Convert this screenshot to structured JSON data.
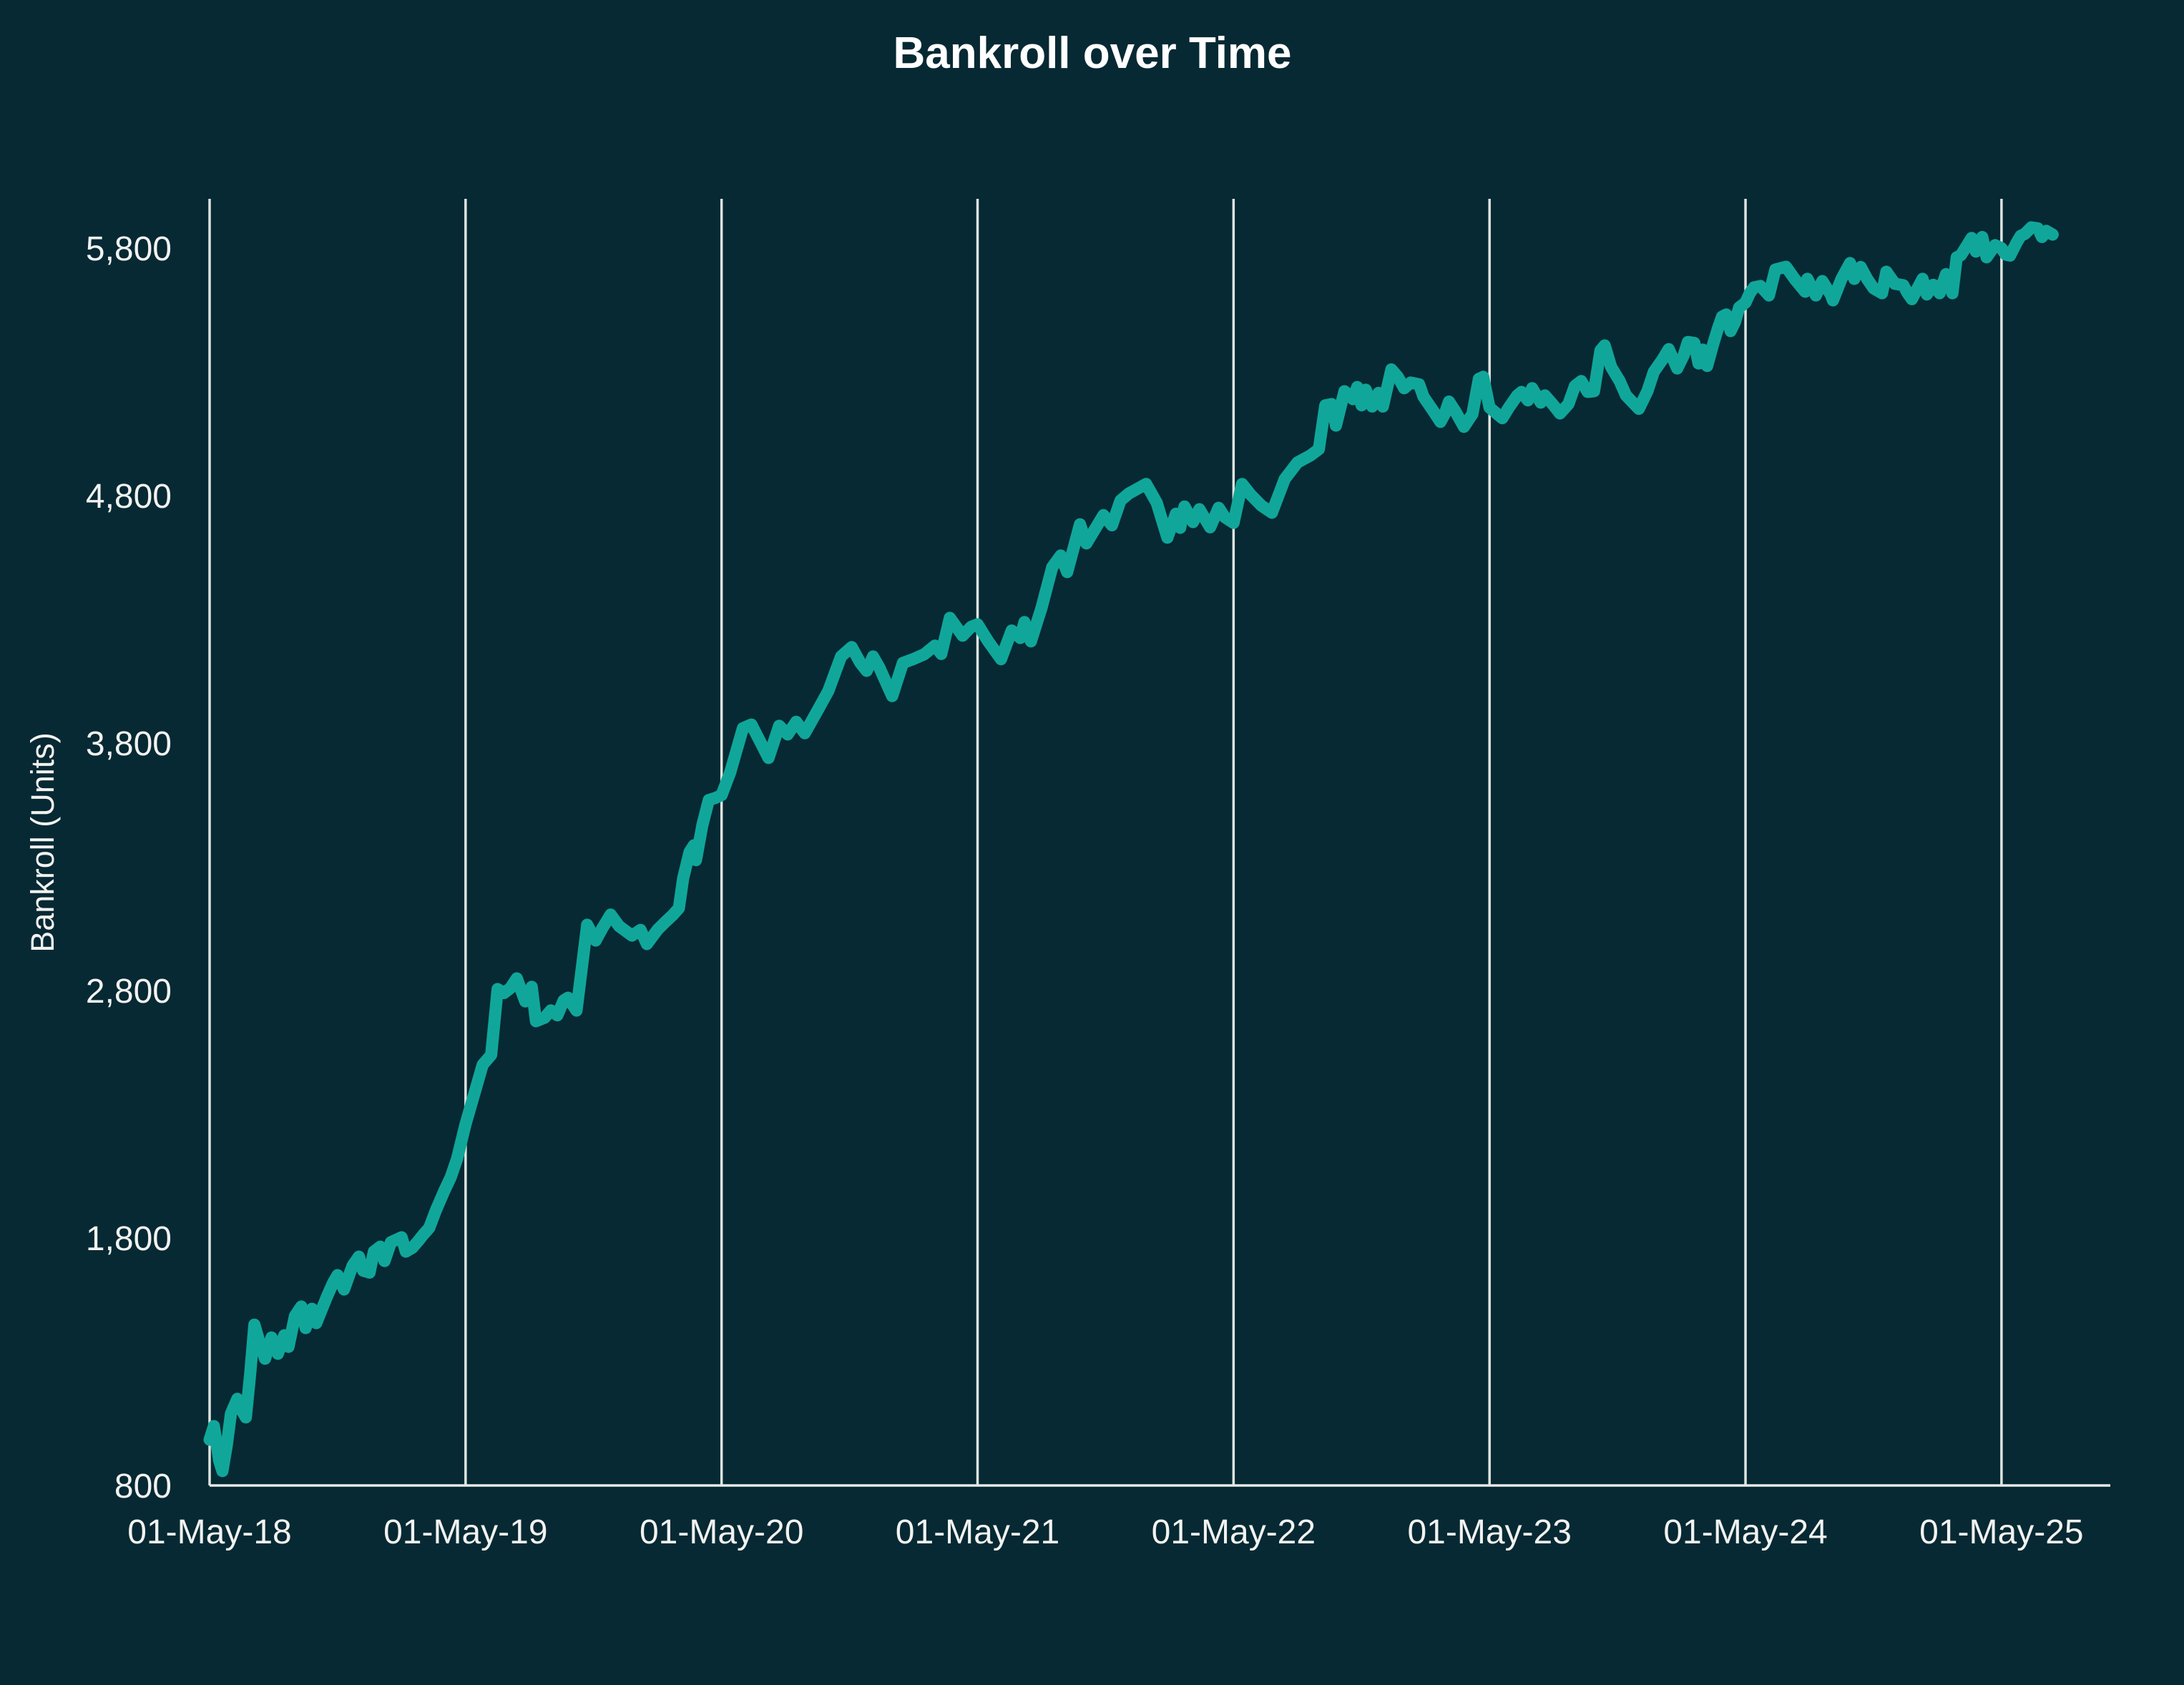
{
  "title": "Bankroll over Time",
  "colors": {
    "background": "#062933",
    "line": "#10a79a",
    "grid": "#dfe3e0",
    "axis_line": "#e8ebe8",
    "tick_text": "#f2f2f0",
    "title_text": "#ffffff"
  },
  "chart_data": {
    "type": "line",
    "title": "Bankroll over Time",
    "xlabel": "",
    "ylabel": "Bankroll (Units)",
    "legend": "none",
    "grid": "vertical-only",
    "ylim": [
      800,
      6000
    ],
    "xlim_months_from_first_tick": [
      0,
      89.1
    ],
    "y_ticks": [
      {
        "value": 800,
        "label": "800"
      },
      {
        "value": 1800,
        "label": "1,800"
      },
      {
        "value": 2800,
        "label": "2,800"
      },
      {
        "value": 3800,
        "label": "3,800"
      },
      {
        "value": 4800,
        "label": "4,800"
      },
      {
        "value": 5800,
        "label": "5,800"
      }
    ],
    "x_ticks": [
      {
        "month": 0,
        "label": "01-May-18"
      },
      {
        "month": 12,
        "label": "01-May-19"
      },
      {
        "month": 24,
        "label": "01-May-20"
      },
      {
        "month": 36,
        "label": "01-May-21"
      },
      {
        "month": 48,
        "label": "01-May-22"
      },
      {
        "month": 60,
        "label": "01-May-23"
      },
      {
        "month": 72,
        "label": "01-May-24"
      },
      {
        "month": 84,
        "label": "01-May-25"
      }
    ],
    "series": [
      {
        "name": "Bankroll",
        "color": "#10a79a",
        "points_month_value": [
          [
            0,
            985
          ],
          [
            0.2,
            1040
          ],
          [
            0.45,
            900
          ],
          [
            0.6,
            858
          ],
          [
            0.8,
            960
          ],
          [
            1,
            1090
          ],
          [
            1.3,
            1150
          ],
          [
            1.5,
            1105
          ],
          [
            1.7,
            1075
          ],
          [
            1.9,
            1250
          ],
          [
            2.1,
            1450
          ],
          [
            2.3,
            1390
          ],
          [
            2.6,
            1312
          ],
          [
            2.9,
            1398
          ],
          [
            3.2,
            1332
          ],
          [
            3.5,
            1407
          ],
          [
            3.7,
            1360
          ],
          [
            4,
            1485
          ],
          [
            4.3,
            1523
          ],
          [
            4.5,
            1436
          ],
          [
            4.8,
            1514
          ],
          [
            5,
            1456
          ],
          [
            5.5,
            1563
          ],
          [
            5.8,
            1621
          ],
          [
            6,
            1650
          ],
          [
            6.3,
            1592
          ],
          [
            6.7,
            1688
          ],
          [
            7,
            1725
          ],
          [
            7.2,
            1668
          ],
          [
            7.5,
            1660
          ],
          [
            7.7,
            1745
          ],
          [
            8,
            1765
          ],
          [
            8.2,
            1707
          ],
          [
            8.5,
            1783
          ],
          [
            9,
            1803
          ],
          [
            9.2,
            1745
          ],
          [
            9.5,
            1760
          ],
          [
            9.8,
            1790
          ],
          [
            10,
            1812
          ],
          [
            10.3,
            1841
          ],
          [
            10.6,
            1910
          ],
          [
            11,
            1990
          ],
          [
            11.3,
            2045
          ],
          [
            11.6,
            2120
          ],
          [
            12,
            2260
          ],
          [
            12.4,
            2380
          ],
          [
            12.8,
            2500
          ],
          [
            13.2,
            2540
          ],
          [
            13.5,
            2806
          ],
          [
            13.8,
            2790
          ],
          [
            14.1,
            2810
          ],
          [
            14.4,
            2849
          ],
          [
            14.8,
            2756
          ],
          [
            15.1,
            2815
          ],
          [
            15.3,
            2676
          ],
          [
            15.7,
            2690
          ],
          [
            16,
            2720
          ],
          [
            16.3,
            2700
          ],
          [
            16.6,
            2760
          ],
          [
            16.8,
            2771
          ],
          [
            17.2,
            2719
          ],
          [
            17.7,
            3066
          ],
          [
            18.1,
            3002
          ],
          [
            18.4,
            3050
          ],
          [
            18.8,
            3107
          ],
          [
            19.2,
            3060
          ],
          [
            19.8,
            3022
          ],
          [
            20.2,
            3045
          ],
          [
            20.5,
            2988
          ],
          [
            21,
            3046
          ],
          [
            21.4,
            3080
          ],
          [
            21.7,
            3104
          ],
          [
            22,
            3133
          ],
          [
            22.2,
            3254
          ],
          [
            22.5,
            3360
          ],
          [
            22.7,
            3387
          ],
          [
            22.8,
            3327
          ],
          [
            23.1,
            3468
          ],
          [
            23.4,
            3570
          ],
          [
            23.7,
            3578
          ],
          [
            24,
            3590
          ],
          [
            24.4,
            3680
          ],
          [
            25,
            3860
          ],
          [
            25.4,
            3875
          ],
          [
            26.2,
            3740
          ],
          [
            26.7,
            3870
          ],
          [
            27.1,
            3835
          ],
          [
            27.5,
            3886
          ],
          [
            27.9,
            3840
          ],
          [
            28.5,
            3932
          ],
          [
            29,
            4010
          ],
          [
            29.6,
            4150
          ],
          [
            30.1,
            4188
          ],
          [
            30.5,
            4125
          ],
          [
            30.8,
            4092
          ],
          [
            31.1,
            4150
          ],
          [
            31.4,
            4105
          ],
          [
            32,
            3990
          ],
          [
            32.5,
            4124
          ],
          [
            33,
            4140
          ],
          [
            33.5,
            4159
          ],
          [
            34,
            4194
          ],
          [
            34.3,
            4160
          ],
          [
            34.7,
            4306
          ],
          [
            35,
            4270
          ],
          [
            35.3,
            4234
          ],
          [
            35.7,
            4270
          ],
          [
            36,
            4280
          ],
          [
            36.5,
            4211
          ],
          [
            37.1,
            4139
          ],
          [
            37.6,
            4255
          ],
          [
            38,
            4225
          ],
          [
            38.2,
            4289
          ],
          [
            38.5,
            4211
          ],
          [
            39,
            4347
          ],
          [
            39.5,
            4511
          ],
          [
            39.9,
            4558
          ],
          [
            40.2,
            4491
          ],
          [
            40.8,
            4684
          ],
          [
            41.1,
            4607
          ],
          [
            41.9,
            4721
          ],
          [
            42.3,
            4680
          ],
          [
            42.7,
            4780
          ],
          [
            43.1,
            4809
          ],
          [
            43.9,
            4847
          ],
          [
            44.4,
            4771
          ],
          [
            44.9,
            4630
          ],
          [
            45.3,
            4727
          ],
          [
            45.5,
            4670
          ],
          [
            45.7,
            4756
          ],
          [
            46.1,
            4693
          ],
          [
            46.4,
            4745
          ],
          [
            46.9,
            4672
          ],
          [
            47.3,
            4751
          ],
          [
            47.6,
            4712
          ],
          [
            48,
            4690
          ],
          [
            48.4,
            4847
          ],
          [
            48.8,
            4804
          ],
          [
            49.3,
            4760
          ],
          [
            49.8,
            4731
          ],
          [
            50.4,
            4867
          ],
          [
            51,
            4934
          ],
          [
            51.6,
            4962
          ],
          [
            52,
            4988
          ],
          [
            52.3,
            5165
          ],
          [
            52.6,
            5170
          ],
          [
            52.8,
            5083
          ],
          [
            53.2,
            5222
          ],
          [
            53.6,
            5190
          ],
          [
            53.8,
            5239
          ],
          [
            54,
            5165
          ],
          [
            54.2,
            5228
          ],
          [
            54.5,
            5160
          ],
          [
            54.8,
            5215
          ],
          [
            55,
            5160
          ],
          [
            55.4,
            5310
          ],
          [
            55.7,
            5280
          ],
          [
            56,
            5234
          ],
          [
            56.3,
            5257
          ],
          [
            56.7,
            5250
          ],
          [
            56.9,
            5200
          ],
          [
            57.3,
            5150
          ],
          [
            57.7,
            5098
          ],
          [
            57.9,
            5130
          ],
          [
            58.1,
            5180
          ],
          [
            58.4,
            5140
          ],
          [
            58.8,
            5078
          ],
          [
            59.2,
            5130
          ],
          [
            59.5,
            5272
          ],
          [
            59.7,
            5280
          ],
          [
            60,
            5156
          ],
          [
            60.4,
            5127
          ],
          [
            60.6,
            5113
          ],
          [
            60.9,
            5155
          ],
          [
            61.3,
            5205
          ],
          [
            61.5,
            5219
          ],
          [
            61.8,
            5185
          ],
          [
            62,
            5234
          ],
          [
            62.4,
            5176
          ],
          [
            62.6,
            5205
          ],
          [
            63,
            5165
          ],
          [
            63.3,
            5132
          ],
          [
            63.7,
            5170
          ],
          [
            64,
            5243
          ],
          [
            64.3,
            5263
          ],
          [
            64.6,
            5219
          ],
          [
            64.9,
            5222
          ],
          [
            65.2,
            5387
          ],
          [
            65.4,
            5407
          ],
          [
            65.7,
            5320
          ],
          [
            66.1,
            5263
          ],
          [
            66.4,
            5205
          ],
          [
            67,
            5151
          ],
          [
            67.4,
            5222
          ],
          [
            67.7,
            5300
          ],
          [
            68.1,
            5349
          ],
          [
            68.4,
            5392
          ],
          [
            68.8,
            5314
          ],
          [
            69.1,
            5367
          ],
          [
            69.3,
            5421
          ],
          [
            69.6,
            5417
          ],
          [
            69.8,
            5334
          ],
          [
            70,
            5390
          ],
          [
            70.2,
            5324
          ],
          [
            70.5,
            5417
          ],
          [
            70.7,
            5474
          ],
          [
            70.9,
            5523
          ],
          [
            71.1,
            5532
          ],
          [
            71.3,
            5465
          ],
          [
            71.5,
            5500
          ],
          [
            71.7,
            5560
          ],
          [
            72,
            5580
          ],
          [
            72.2,
            5618
          ],
          [
            72.4,
            5642
          ],
          [
            72.7,
            5647
          ],
          [
            73.1,
            5609
          ],
          [
            73.4,
            5714
          ],
          [
            73.9,
            5725
          ],
          [
            74.3,
            5676
          ],
          [
            74.8,
            5624
          ],
          [
            74.9,
            5676
          ],
          [
            75.3,
            5609
          ],
          [
            75.6,
            5667
          ],
          [
            76,
            5612
          ],
          [
            76.1,
            5589
          ],
          [
            76.5,
            5676
          ],
          [
            76.9,
            5740
          ],
          [
            77.1,
            5676
          ],
          [
            77.4,
            5724
          ],
          [
            77.7,
            5676
          ],
          [
            78,
            5638
          ],
          [
            78.4,
            5618
          ],
          [
            78.6,
            5705
          ],
          [
            79,
            5656
          ],
          [
            79.4,
            5650
          ],
          [
            79.6,
            5618
          ],
          [
            79.8,
            5594
          ],
          [
            80.3,
            5676
          ],
          [
            80.5,
            5613
          ],
          [
            80.8,
            5652
          ],
          [
            81.1,
            5618
          ],
          [
            81.4,
            5695
          ],
          [
            81.7,
            5618
          ],
          [
            81.9,
            5763
          ],
          [
            82.1,
            5772
          ],
          [
            82.6,
            5841
          ],
          [
            82.8,
            5786
          ],
          [
            83.1,
            5845
          ],
          [
            83.3,
            5763
          ],
          [
            83.7,
            5812
          ],
          [
            84,
            5800
          ],
          [
            84.2,
            5774
          ],
          [
            84.4,
            5770
          ],
          [
            84.7,
            5821
          ],
          [
            84.9,
            5850
          ],
          [
            85.1,
            5858
          ],
          [
            85.4,
            5884
          ],
          [
            85.7,
            5880
          ],
          [
            85.9,
            5845
          ],
          [
            86.1,
            5870
          ],
          [
            86.4,
            5855
          ]
        ]
      }
    ]
  }
}
